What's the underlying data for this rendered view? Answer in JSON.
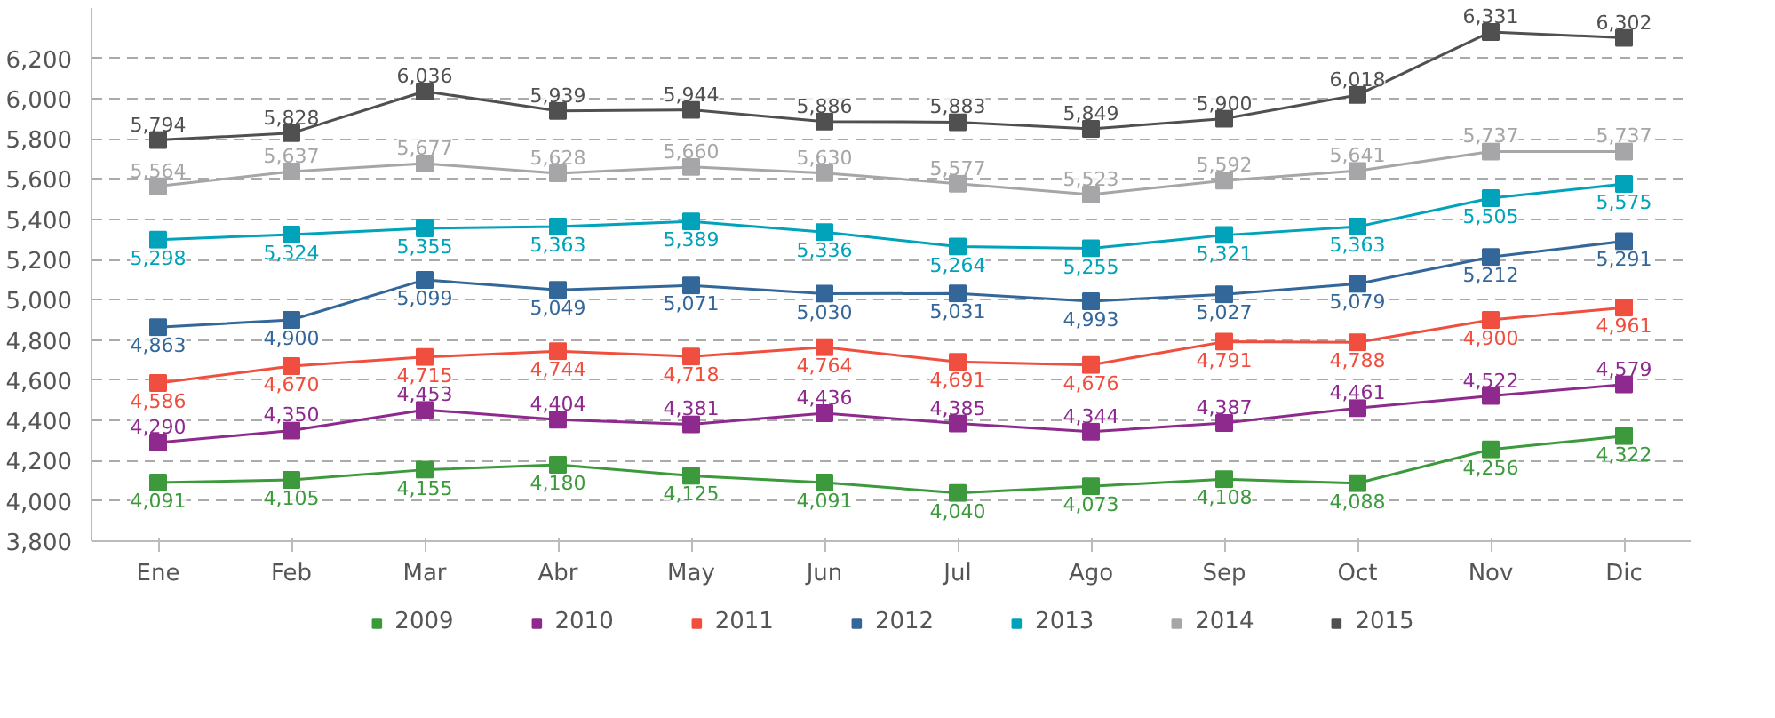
{
  "chart_data": {
    "type": "line",
    "categories": [
      "Ene",
      "Feb",
      "Mar",
      "Abr",
      "May",
      "Jun",
      "Jul",
      "Ago",
      "Sep",
      "Oct",
      "Nov",
      "Dic"
    ],
    "series": [
      {
        "name": "2009",
        "color": "#3c9a3c",
        "values": [
          4091,
          4105,
          4155,
          4180,
          4125,
          4091,
          4040,
          4073,
          4108,
          4088,
          4256,
          4322
        ],
        "value_labels": [
          "4,091",
          "4,105",
          "4,155",
          "4,180",
          "4,125",
          "4,091",
          "4,040",
          "4,073",
          "4,108",
          "4,088",
          "4,256",
          "4,322"
        ]
      },
      {
        "name": "2010",
        "color": "#8e2a8e",
        "values": [
          4290,
          4350,
          4453,
          4404,
          4381,
          4436,
          4385,
          4344,
          4387,
          4461,
          4522,
          4579
        ],
        "value_labels": [
          "4,290",
          "4,350",
          "4,453",
          "4,404",
          "4,381",
          "4,436",
          "4,385",
          "4,344",
          "4,387",
          "4,461",
          "4,522",
          "4,579"
        ]
      },
      {
        "name": "2011",
        "color": "#f04e3e",
        "values": [
          4586,
          4670,
          4715,
          4744,
          4718,
          4764,
          4691,
          4676,
          4791,
          4788,
          4900,
          4961
        ],
        "value_labels": [
          "4,586",
          "4,670",
          "4,715",
          "4,744",
          "4,718",
          "4,764",
          "4,691",
          "4,676",
          "4,791",
          "4,788",
          "4,900",
          "4,961"
        ]
      },
      {
        "name": "2012",
        "color": "#336699",
        "values": [
          4863,
          4900,
          5099,
          5049,
          5071,
          5030,
          5031,
          4993,
          5027,
          5079,
          5212,
          5291
        ],
        "value_labels": [
          "4,863",
          "4,900",
          "5,099",
          "5,049",
          "5,071",
          "5,030",
          "5,031",
          "4,993",
          "5,027",
          "5,079",
          "5,212",
          "5,291"
        ]
      },
      {
        "name": "2013",
        "color": "#00a3b9",
        "values": [
          5298,
          5324,
          5355,
          5363,
          5389,
          5336,
          5264,
          5255,
          5321,
          5363,
          5505,
          5575
        ],
        "value_labels": [
          "5,298",
          "5,324",
          "5,355",
          "5,363",
          "5,389",
          "5,336",
          "5,264",
          "5,255",
          "5,321",
          "5,363",
          "5,505",
          "5,575"
        ]
      },
      {
        "name": "2014",
        "color": "#a6a6a8",
        "values": [
          5564,
          5637,
          5677,
          5628,
          5660,
          5630,
          5577,
          5523,
          5592,
          5641,
          5737,
          5737
        ],
        "value_labels": [
          "5,564",
          "5,637",
          "5,677",
          "5,628",
          "5,660",
          "5,630",
          "5,577",
          "5,523",
          "5,592",
          "5,641",
          "5,737",
          "5,737"
        ]
      },
      {
        "name": "2015",
        "color": "#505050",
        "values": [
          5794,
          5828,
          6036,
          5939,
          5944,
          5886,
          5883,
          5849,
          5900,
          6018,
          6331,
          6302
        ],
        "value_labels": [
          "5,794",
          "5,828",
          "6,036",
          "5,939",
          "5,944",
          "5,886",
          "5,883",
          "5,849",
          "5,900",
          "6,018",
          "6,331",
          "6,302"
        ]
      }
    ],
    "ylim": [
      3800,
      6450
    ],
    "yticks": [
      {
        "value": 3800,
        "label": "3,800"
      },
      {
        "value": 4000,
        "label": "4,000"
      },
      {
        "value": 4200,
        "label": "4,200"
      },
      {
        "value": 4400,
        "label": "4,400"
      },
      {
        "value": 4600,
        "label": "4,600"
      },
      {
        "value": 4800,
        "label": "4,800"
      },
      {
        "value": 5000,
        "label": "5,000"
      },
      {
        "value": 5200,
        "label": "5,200"
      },
      {
        "value": 5400,
        "label": "5,400"
      },
      {
        "value": 5600,
        "label": "5,600"
      },
      {
        "value": 5800,
        "label": "5,800"
      },
      {
        "value": 6000,
        "label": "6,000"
      },
      {
        "value": 6200,
        "label": "6,200"
      }
    ],
    "grid": "y",
    "legend": "bottom",
    "marker": "square",
    "line_style": "solid"
  }
}
